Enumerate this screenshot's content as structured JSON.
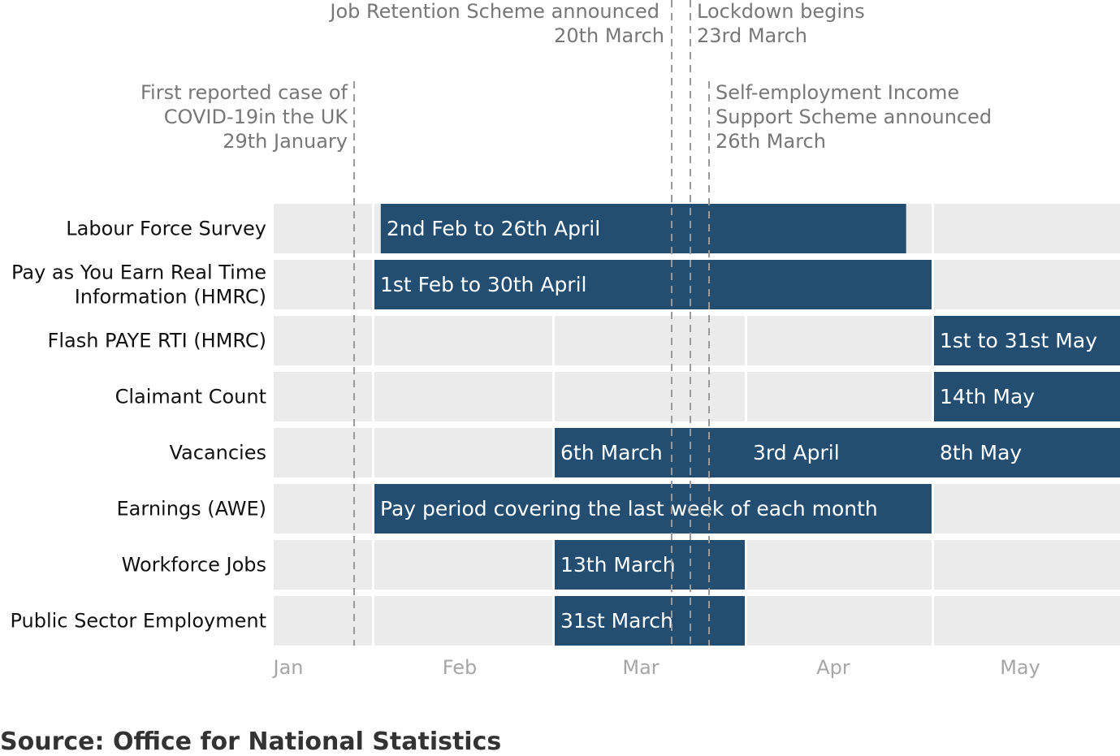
{
  "chart_data": {
    "type": "gantt",
    "months": [
      "Jan",
      "Feb",
      "Mar",
      "Apr",
      "May"
    ],
    "rows": [
      {
        "label": [
          "Labour Force Survey"
        ],
        "bars": [
          {
            "start": "2020-02-02",
            "end": "2020-04-26",
            "text": "2nd Feb to 26th April"
          }
        ]
      },
      {
        "label": [
          "Pay as You Earn Real Time",
          "Information (HMRC)"
        ],
        "bars": [
          {
            "start": "2020-02-01",
            "end": "2020-04-30",
            "text": "1st Feb to 30th April"
          }
        ]
      },
      {
        "label": [
          "Flash PAYE RTI (HMRC)"
        ],
        "bars": [
          {
            "start": "2020-05-01",
            "end": "2020-05-31",
            "text": "1st to 31st May"
          }
        ]
      },
      {
        "label": [
          "Claimant Count"
        ],
        "bars": [
          {
            "start": "2020-05-01",
            "end": "2020-05-31",
            "text": "14th May"
          }
        ]
      },
      {
        "label": [
          "Vacancies"
        ],
        "bars": [
          {
            "start": "2020-03-01",
            "end": "2020-05-31",
            "texts": [
              {
                "at": "2020-03-01",
                "text": "6th March"
              },
              {
                "at": "2020-04-01",
                "text": "3rd April"
              },
              {
                "at": "2020-05-01",
                "text": "8th May"
              }
            ]
          }
        ]
      },
      {
        "label": [
          "Earnings (AWE)"
        ],
        "bars": [
          {
            "start": "2020-02-01",
            "end": "2020-04-30",
            "text": "Pay period covering the last week of each month"
          }
        ]
      },
      {
        "label": [
          "Workforce Jobs"
        ],
        "bars": [
          {
            "start": "2020-03-01",
            "end": "2020-03-31",
            "text": "13th March"
          }
        ]
      },
      {
        "label": [
          "Public Sector Employment"
        ],
        "bars": [
          {
            "start": "2020-03-01",
            "end": "2020-03-31",
            "text": "31st March"
          }
        ]
      }
    ],
    "events": [
      {
        "date": "2020-01-29",
        "lines": [
          "First reported case of",
          "COVID-19in the UK",
          "29th January"
        ],
        "align": "right"
      },
      {
        "date": "2020-03-20",
        "lines": [
          "Job Retention Scheme announced",
          "20th March"
        ],
        "align": "right"
      },
      {
        "date": "2020-03-23",
        "lines": [
          "Lockdown begins",
          "23rd March"
        ],
        "align": "left"
      },
      {
        "date": "2020-03-26",
        "lines": [
          "Self-employment Income",
          "Support Scheme announced",
          "26th March"
        ],
        "align": "left"
      }
    ],
    "colors": {
      "bar": "#234e71",
      "background": "#ebebeb",
      "event_line": "#9a9a9a",
      "axis_text": "#a6a6a6",
      "event_text": "#777777"
    }
  },
  "source": "Source: Office for National Statistics"
}
